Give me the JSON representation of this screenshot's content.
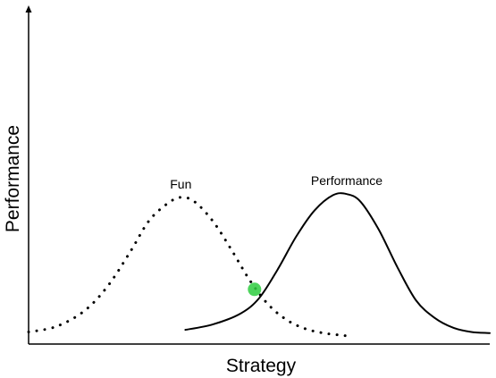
{
  "chart_data": {
    "type": "line",
    "xlabel": "Strategy",
    "ylabel": "Performance",
    "xlim": [
      0,
      10
    ],
    "ylim": [
      0,
      10
    ],
    "ticks_shown": false,
    "grid": false,
    "series": [
      {
        "name": "Fun",
        "style": "dotted",
        "color": "#000000",
        "x": [
          0.0,
          0.6,
          1.2,
          1.7,
          2.2,
          2.6,
          3.0,
          3.3,
          3.6,
          4.0,
          4.4,
          4.8,
          5.2,
          5.6,
          6.0,
          6.4,
          6.8,
          7.0
        ],
        "y": [
          0.55,
          0.8,
          1.5,
          2.6,
          4.2,
          5.6,
          6.4,
          6.7,
          6.5,
          5.6,
          4.3,
          2.9,
          1.8,
          1.1,
          0.7,
          0.5,
          0.4,
          0.35
        ]
      },
      {
        "name": "Performance",
        "style": "solid",
        "color": "#000000",
        "x": [
          3.4,
          4.0,
          4.6,
          5.0,
          5.4,
          5.8,
          6.2,
          6.6,
          6.9,
          7.2,
          7.6,
          8.0,
          8.4,
          8.8,
          9.2,
          9.6,
          10.0
        ],
        "y": [
          0.65,
          0.9,
          1.4,
          2.1,
          3.4,
          4.9,
          6.1,
          6.8,
          6.85,
          6.5,
          5.2,
          3.5,
          2.0,
          1.2,
          0.75,
          0.55,
          0.5
        ]
      }
    ],
    "annotations": [
      {
        "type": "point",
        "x": 4.9,
        "y": 2.5,
        "color": "#2ecc40",
        "note": "intersection"
      }
    ]
  }
}
